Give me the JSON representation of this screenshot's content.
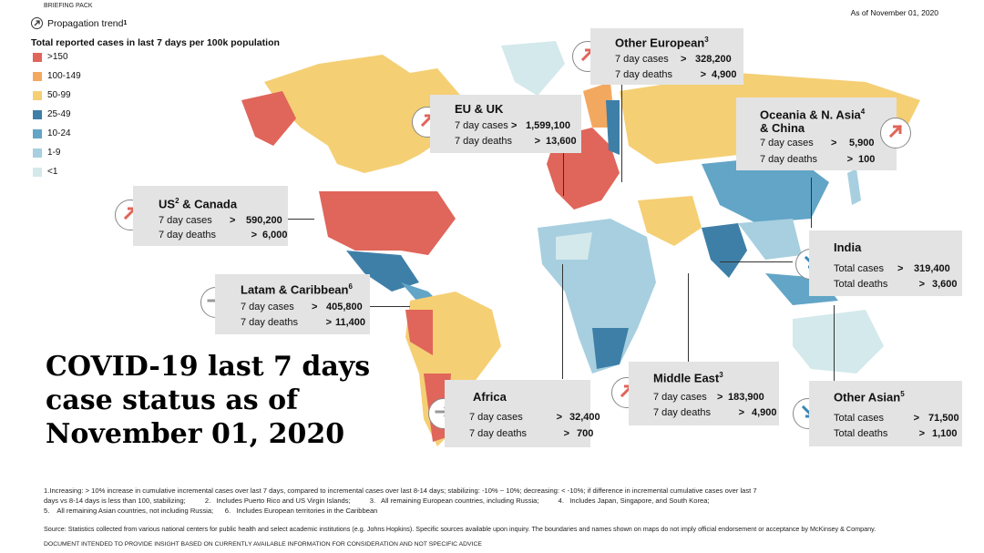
{
  "header": {
    "briefing": "BRIEFING PACK",
    "date": "As of November 01, 2020"
  },
  "trend_label": "Propagation trend",
  "trend_sup": "1",
  "legend": {
    "title": "Total reported cases in last 7 days per 100k population",
    "items": [
      {
        "label": ">150",
        "color": "#e0655a"
      },
      {
        "label": "100-149",
        "color": "#f3a860"
      },
      {
        "label": "50-99",
        "color": "#f5cf74"
      },
      {
        "label": "25-49",
        "color": "#3e7fa8"
      },
      {
        "label": "10-24",
        "color": "#62a5c7"
      },
      {
        "label": "1-9",
        "color": "#a7cfdf"
      },
      {
        "label": "<1",
        "color": "#d4e9ec"
      }
    ]
  },
  "labels": {
    "cases": "7 day cases",
    "deaths": "7 day deaths",
    "total_cases": "Total cases",
    "total_deaths": "Total deaths",
    "gt": ">"
  },
  "regions": {
    "us_canada": {
      "name": "US",
      "sup": "2",
      "name2": " & Canada",
      "cases": "590,200",
      "deaths": "6,000",
      "trend": "increasing"
    },
    "latam": {
      "name": "Latam & Caribbean",
      "sup": "6",
      "cases": "405,800",
      "deaths": "11,400",
      "trend": "stabilizing"
    },
    "eu_uk": {
      "name": "EU & UK",
      "cases": "1,599,100",
      "deaths": "13,600",
      "trend": "increasing"
    },
    "other_european": {
      "name": "Other European",
      "sup": "3",
      "cases": "328,200",
      "deaths": "4,900",
      "trend": "increasing"
    },
    "oceania": {
      "name": "Oceania & N. Asia",
      "sup": "4",
      "name2": "& China",
      "cases": "5,900",
      "deaths": "100",
      "trend": "increasing"
    },
    "india": {
      "name": "India",
      "cases": "319,400",
      "deaths": "3,600",
      "trend": "decreasing"
    },
    "africa": {
      "name": "Africa",
      "cases": "32,400",
      "deaths": "700",
      "trend": "stabilizing"
    },
    "middle_east": {
      "name": "Middle East",
      "sup": "3",
      "cases": "183,900",
      "deaths": "4,900",
      "trend": "increasing"
    },
    "other_asian": {
      "name": "Other Asian",
      "sup": "5",
      "cases": "71,500",
      "deaths": "1,100",
      "trend": "decreasing"
    }
  },
  "headline": "COVID-19 last 7 days case status as of November 01, 2020",
  "footnotes": {
    "line1": "1.Increasing: > 10% increase in cumulative incremental cases over last 7 days, compared to incremental cases over last 8-14 days; stabilizing: -10% ~ 10%; decreasing: < -10%; if difference in incremental cumulative cases over last 7",
    "line2": "days vs 8-14 days is less than 100, stabilizing;          2.   Includes Puerto Rico and US Virgin Islands;          3.   All remaining European countries, including Russia;          4.   Includes Japan, Singapore, and South Korea;",
    "line3": "5.    All remaining Asian countries, not including Russia;      6.   Includes European territories in the Caribbean",
    "source": "Source: Statistics collected from various national centers for public health and select academic institutions (e.g. Johns Hopkins). Specific sources available upon inquiry. The boundaries and names shown on maps do not imply official endorsement or acceptance by McKinsey & Company.",
    "disclaimer": "DOCUMENT INTENDED TO PROVIDE INSIGHT BASED ON CURRENTLY AVAILABLE INFORMATION FOR CONSIDERATION AND NOT SPECIFIC ADVICE"
  },
  "colors": {
    "increasing": "#e0655a",
    "stabilizing": "#999999",
    "decreasing": "#3a86b4",
    "box": "#e3e3e3"
  }
}
